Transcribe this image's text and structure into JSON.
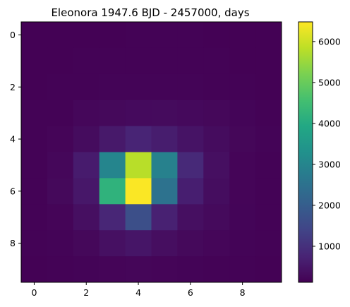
{
  "chart_data": {
    "type": "heatmap",
    "title": "Eleonora 1947.6 BJD - 2457000, days",
    "xlabel": "",
    "ylabel": "",
    "x_ticks": [
      "0",
      "2",
      "4",
      "6",
      "8"
    ],
    "y_ticks": [
      "0",
      "2",
      "4",
      "6",
      "8"
    ],
    "colorbar_ticks": [
      "1000",
      "2000",
      "3000",
      "4000",
      "5000",
      "6000"
    ],
    "colorbar_tick_values": [
      1000,
      2000,
      3000,
      4000,
      5000,
      6000
    ],
    "vmin": 120,
    "vmax": 6480,
    "colormap": "viridis",
    "grid": false,
    "values": [
      [
        140,
        140,
        145,
        145,
        150,
        150,
        150,
        145,
        140,
        140
      ],
      [
        140,
        145,
        150,
        155,
        160,
        160,
        155,
        150,
        145,
        140
      ],
      [
        145,
        150,
        160,
        170,
        175,
        175,
        170,
        160,
        150,
        145
      ],
      [
        150,
        160,
        230,
        260,
        290,
        300,
        270,
        240,
        190,
        160
      ],
      [
        155,
        200,
        320,
        550,
        750,
        620,
        450,
        320,
        220,
        170
      ],
      [
        165,
        230,
        600,
        3000,
        5800,
        2900,
        850,
        380,
        200,
        165
      ],
      [
        165,
        260,
        520,
        4200,
        6450,
        2500,
        650,
        330,
        200,
        165
      ],
      [
        160,
        200,
        380,
        800,
        1650,
        700,
        380,
        280,
        190,
        160
      ],
      [
        150,
        170,
        240,
        390,
        480,
        360,
        260,
        210,
        170,
        150
      ],
      [
        145,
        150,
        170,
        200,
        210,
        200,
        180,
        165,
        150,
        145
      ]
    ]
  }
}
